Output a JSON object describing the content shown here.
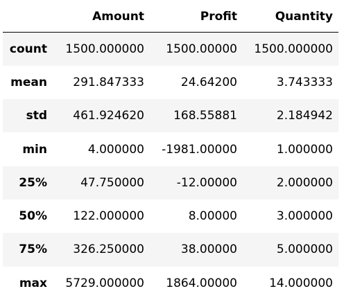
{
  "table": {
    "index_header": "",
    "columns": [
      "Amount",
      "Profit",
      "Quantity"
    ],
    "rows": [
      {
        "label": "count",
        "values": [
          "1500.000000",
          "1500.00000",
          "1500.000000"
        ]
      },
      {
        "label": "mean",
        "values": [
          "291.847333",
          "24.64200",
          "3.743333"
        ]
      },
      {
        "label": "std",
        "values": [
          "461.924620",
          "168.55881",
          "2.184942"
        ]
      },
      {
        "label": "min",
        "values": [
          "4.000000",
          "-1981.00000",
          "1.000000"
        ]
      },
      {
        "label": "25%",
        "values": [
          "47.750000",
          "-12.00000",
          "2.000000"
        ]
      },
      {
        "label": "50%",
        "values": [
          "122.000000",
          "8.00000",
          "3.000000"
        ]
      },
      {
        "label": "75%",
        "values": [
          "326.250000",
          "38.00000",
          "5.000000"
        ]
      },
      {
        "label": "max",
        "values": [
          "5729.000000",
          "1864.00000",
          "14.000000"
        ]
      }
    ]
  }
}
